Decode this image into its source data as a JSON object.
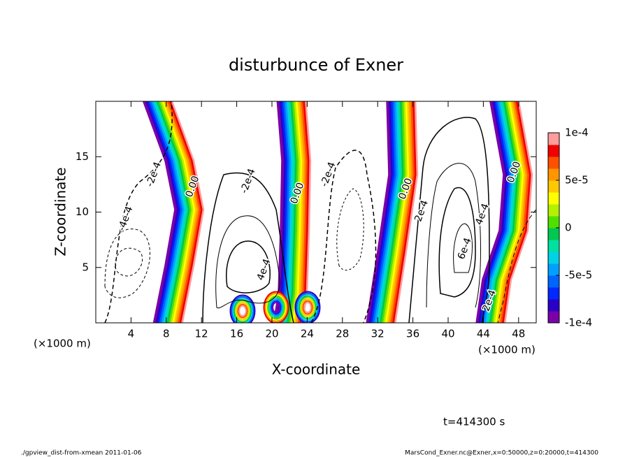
{
  "chart_data": {
    "type": "contour",
    "title": "disturbunce of Exner",
    "xlabel": "X-coordinate",
    "ylabel": "Z-coordinate",
    "x_unit": "(×1000 m)",
    "x_unit_right": "(×1000 m)",
    "xlim": [
      0,
      50
    ],
    "ylim": [
      0,
      20
    ],
    "xticks": [
      4,
      8,
      12,
      16,
      20,
      24,
      28,
      32,
      36,
      40,
      44,
      48
    ],
    "yticks": [
      5,
      10,
      15
    ],
    "clim": [
      -0.0001,
      0.0001
    ],
    "cticks": [
      {
        "value": 0.0001,
        "label": "1e-4"
      },
      {
        "value": 5e-05,
        "label": "5e-5"
      },
      0,
      {
        "value": -5e-05,
        "label": "-5e-5"
      },
      {
        "value": -0.0001,
        "label": "-1e-4"
      }
    ],
    "colors": [
      "#7a00a8",
      "#2a00c8",
      "#0028ff",
      "#0064ff",
      "#00a0ff",
      "#00d2e6",
      "#00e0a0",
      "#00c850",
      "#50e000",
      "#b4f000",
      "#ffff00",
      "#ffc800",
      "#ff9600",
      "#ff5000",
      "#f00000",
      "#ff9c9c"
    ],
    "annotations": [
      {
        "text": "-2e-4",
        "x": 6.6,
        "y": 13.4
      },
      {
        "text": "-4e-4",
        "x": 3.4,
        "y": 9.4
      },
      {
        "text": "0.00",
        "x": 11,
        "y": 12.3
      },
      {
        "text": "-2e-4",
        "x": 17.3,
        "y": 12.8
      },
      {
        "text": "0.00",
        "x": 22.9,
        "y": 11.7
      },
      {
        "text": "-2e-4",
        "x": 26.4,
        "y": 13.4
      },
      {
        "text": "0.00",
        "x": 35.2,
        "y": 12.1
      },
      {
        "text": "2e-4",
        "x": 37,
        "y": 10.1
      },
      {
        "text": "4e-4",
        "x": 43.9,
        "y": 9.8
      },
      {
        "text": "6e-4",
        "x": 41.9,
        "y": 6.7
      },
      {
        "text": "0.00",
        "x": 47.5,
        "y": 13.6
      },
      {
        "text": "4e-4",
        "x": 19.1,
        "y": 4.8
      },
      {
        "text": "2e-4",
        "x": 44.7,
        "y": 2
      }
    ],
    "time_label": "t=414300 s",
    "footer_left": "./gpview_dist-from-xmean  2011-01-06",
    "footer_right": "MarsCond_Exner.nc@Exner,x=0:50000,z=0:20000,t=414300"
  }
}
